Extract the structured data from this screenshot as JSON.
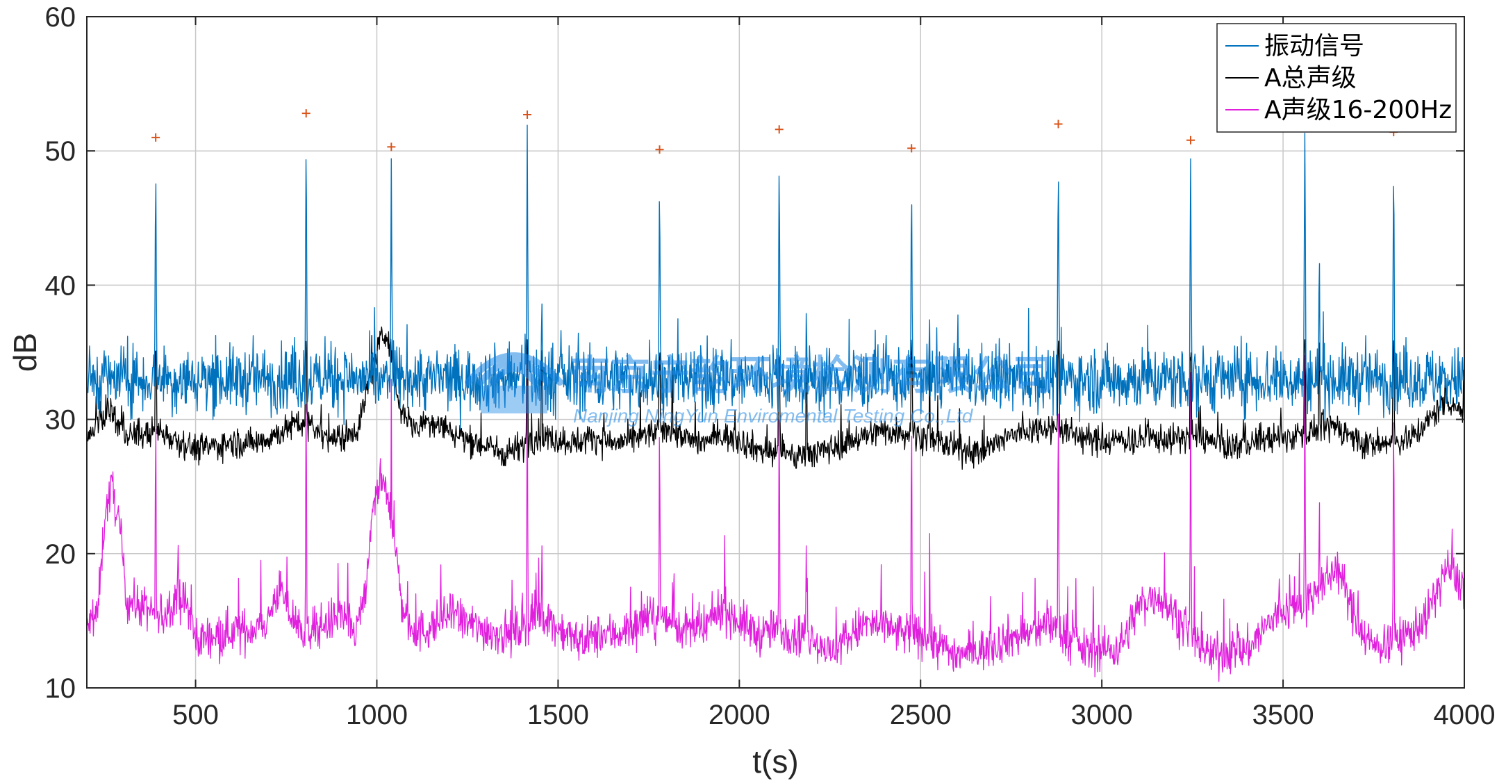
{
  "chart_data": {
    "type": "line",
    "xlabel": "t(s)",
    "ylabel": "dB",
    "xlim": [
      200,
      4000
    ],
    "ylim": [
      10,
      60
    ],
    "xticks": [
      500,
      1000,
      1500,
      2000,
      2500,
      3000,
      3500,
      4000
    ],
    "yticks": [
      10,
      20,
      30,
      40,
      50,
      60
    ],
    "grid": true,
    "legend_position": "top-right",
    "series": [
      {
        "name": "振动信号",
        "color": "#0072BD",
        "baseline": 33,
        "noise": 1.2,
        "spikes": [
          [
            390,
            50.5
          ],
          [
            805,
            52.5
          ],
          [
            1040,
            50
          ],
          [
            1415,
            52.3
          ],
          [
            1455,
            41
          ],
          [
            1780,
            49.8
          ],
          [
            1815,
            38
          ],
          [
            2110,
            51.2
          ],
          [
            2185,
            41
          ],
          [
            2475,
            49.9
          ],
          [
            2525,
            38.5
          ],
          [
            2880,
            51.7
          ],
          [
            3245,
            50.5
          ],
          [
            3560,
            52.2
          ],
          [
            3600,
            44.5
          ],
          [
            3805,
            51
          ]
        ]
      },
      {
        "name": "A总声级",
        "color": "#000000",
        "points": [
          [
            200,
            28.4
          ],
          [
            230,
            29.5
          ],
          [
            260,
            31
          ],
          [
            300,
            29
          ],
          [
            350,
            28.8
          ],
          [
            400,
            29.2
          ],
          [
            450,
            28.5
          ],
          [
            500,
            27.8
          ],
          [
            550,
            28
          ],
          [
            600,
            28.3
          ],
          [
            650,
            28.2
          ],
          [
            700,
            28.6
          ],
          [
            750,
            29.3
          ],
          [
            800,
            29.8
          ],
          [
            850,
            28.9
          ],
          [
            900,
            28.5
          ],
          [
            950,
            29.5
          ],
          [
            980,
            33
          ],
          [
            1010,
            36
          ],
          [
            1030,
            36.5
          ],
          [
            1060,
            31
          ],
          [
            1100,
            29.5
          ],
          [
            1150,
            30
          ],
          [
            1200,
            29.2
          ],
          [
            1250,
            28.5
          ],
          [
            1300,
            28
          ],
          [
            1350,
            27.5
          ],
          [
            1400,
            28
          ],
          [
            1450,
            28.8
          ],
          [
            1500,
            28.5
          ],
          [
            1550,
            28.3
          ],
          [
            1600,
            28.7
          ],
          [
            1650,
            28.2
          ],
          [
            1700,
            28.4
          ],
          [
            1750,
            28.9
          ],
          [
            1800,
            29.3
          ],
          [
            1850,
            28.6
          ],
          [
            1900,
            28.3
          ],
          [
            1950,
            28.8
          ],
          [
            2000,
            28.5
          ],
          [
            2050,
            27.8
          ],
          [
            2100,
            27.5
          ],
          [
            2150,
            27.2
          ],
          [
            2200,
            27.5
          ],
          [
            2250,
            27.8
          ],
          [
            2300,
            28.4
          ],
          [
            2350,
            28.8
          ],
          [
            2400,
            29.2
          ],
          [
            2450,
            29
          ],
          [
            2500,
            28.8
          ],
          [
            2550,
            28.3
          ],
          [
            2600,
            27.8
          ],
          [
            2650,
            27.6
          ],
          [
            2700,
            28
          ],
          [
            2750,
            28.8
          ],
          [
            2800,
            29.2
          ],
          [
            2850,
            29.5
          ],
          [
            2900,
            29.2
          ],
          [
            2950,
            28.6
          ],
          [
            3000,
            28.3
          ],
          [
            3050,
            28.5
          ],
          [
            3100,
            28.4
          ],
          [
            3150,
            28.6
          ],
          [
            3200,
            28.5
          ],
          [
            3250,
            28.8
          ],
          [
            3300,
            28.3
          ],
          [
            3350,
            28
          ],
          [
            3400,
            28.2
          ],
          [
            3450,
            28.6
          ],
          [
            3500,
            28.5
          ],
          [
            3550,
            29
          ],
          [
            3600,
            29.3
          ],
          [
            3650,
            29.5
          ],
          [
            3700,
            28.5
          ],
          [
            3750,
            28
          ],
          [
            3800,
            28.3
          ],
          [
            3850,
            28.6
          ],
          [
            3900,
            29.8
          ],
          [
            3950,
            31.5
          ],
          [
            4000,
            30.5
          ]
        ]
      },
      {
        "name": "A声级16-200Hz",
        "color": "#E020DD",
        "points": [
          [
            200,
            14.5
          ],
          [
            230,
            15.5
          ],
          [
            250,
            23
          ],
          [
            270,
            25
          ],
          [
            290,
            22
          ],
          [
            310,
            16.5
          ],
          [
            360,
            16
          ],
          [
            400,
            15
          ],
          [
            450,
            17
          ],
          [
            480,
            16
          ],
          [
            500,
            13.5
          ],
          [
            550,
            14
          ],
          [
            600,
            14.2
          ],
          [
            650,
            14.3
          ],
          [
            700,
            15
          ],
          [
            730,
            17.5
          ],
          [
            760,
            15.5
          ],
          [
            800,
            14.2
          ],
          [
            850,
            14.6
          ],
          [
            900,
            15.5
          ],
          [
            940,
            14
          ],
          [
            970,
            17
          ],
          [
            990,
            24
          ],
          [
            1020,
            25
          ],
          [
            1045,
            22
          ],
          [
            1070,
            16
          ],
          [
            1100,
            14
          ],
          [
            1150,
            14.5
          ],
          [
            1200,
            15.5
          ],
          [
            1250,
            14.8
          ],
          [
            1300,
            14.3
          ],
          [
            1350,
            14
          ],
          [
            1400,
            14.5
          ],
          [
            1450,
            15.5
          ],
          [
            1500,
            14.5
          ],
          [
            1550,
            13.5
          ],
          [
            1600,
            13.8
          ],
          [
            1650,
            14
          ],
          [
            1700,
            14.4
          ],
          [
            1750,
            15.2
          ],
          [
            1800,
            15
          ],
          [
            1850,
            14.4
          ],
          [
            1900,
            14.2
          ],
          [
            1950,
            16
          ],
          [
            2000,
            15
          ],
          [
            2050,
            14
          ],
          [
            2100,
            14.3
          ],
          [
            2150,
            14.2
          ],
          [
            2200,
            13.8
          ],
          [
            2250,
            12.5
          ],
          [
            2300,
            13.8
          ],
          [
            2350,
            14.8
          ],
          [
            2400,
            14.5
          ],
          [
            2450,
            14
          ],
          [
            2500,
            14
          ],
          [
            2550,
            13.2
          ],
          [
            2600,
            12.5
          ],
          [
            2650,
            12.7
          ],
          [
            2700,
            13.2
          ],
          [
            2750,
            13.8
          ],
          [
            2800,
            14
          ],
          [
            2850,
            14.8
          ],
          [
            2900,
            14
          ],
          [
            2950,
            12.8
          ],
          [
            3000,
            12.8
          ],
          [
            3050,
            13
          ],
          [
            3100,
            16
          ],
          [
            3150,
            17
          ],
          [
            3200,
            15.5
          ],
          [
            3250,
            13.5
          ],
          [
            3300,
            12.5
          ],
          [
            3350,
            12.7
          ],
          [
            3400,
            12.8
          ],
          [
            3450,
            14.5
          ],
          [
            3500,
            15.8
          ],
          [
            3550,
            16
          ],
          [
            3600,
            17.5
          ],
          [
            3650,
            19
          ],
          [
            3700,
            15
          ],
          [
            3750,
            13
          ],
          [
            3800,
            13.5
          ],
          [
            3850,
            14
          ],
          [
            3900,
            15.5
          ],
          [
            3950,
            19
          ],
          [
            4000,
            17.5
          ]
        ]
      }
    ],
    "peak_markers": [
      [
        390,
        51
      ],
      [
        805,
        52.8
      ],
      [
        1040,
        50.3
      ],
      [
        1415,
        52.7
      ],
      [
        1780,
        50.1
      ],
      [
        2110,
        51.6
      ],
      [
        2475,
        50.2
      ],
      [
        2880,
        52
      ],
      [
        3245,
        50.8
      ],
      [
        3560,
        52.7
      ],
      [
        3805,
        51.4
      ]
    ],
    "peak_marker_color": "#D95319",
    "watermark": {
      "name": "南京宁韵环境检测有限公司",
      "subtitle": "Nanjing NingYun Enviromental Testing Co.,Ltd",
      "color": "#1E88E5"
    }
  }
}
